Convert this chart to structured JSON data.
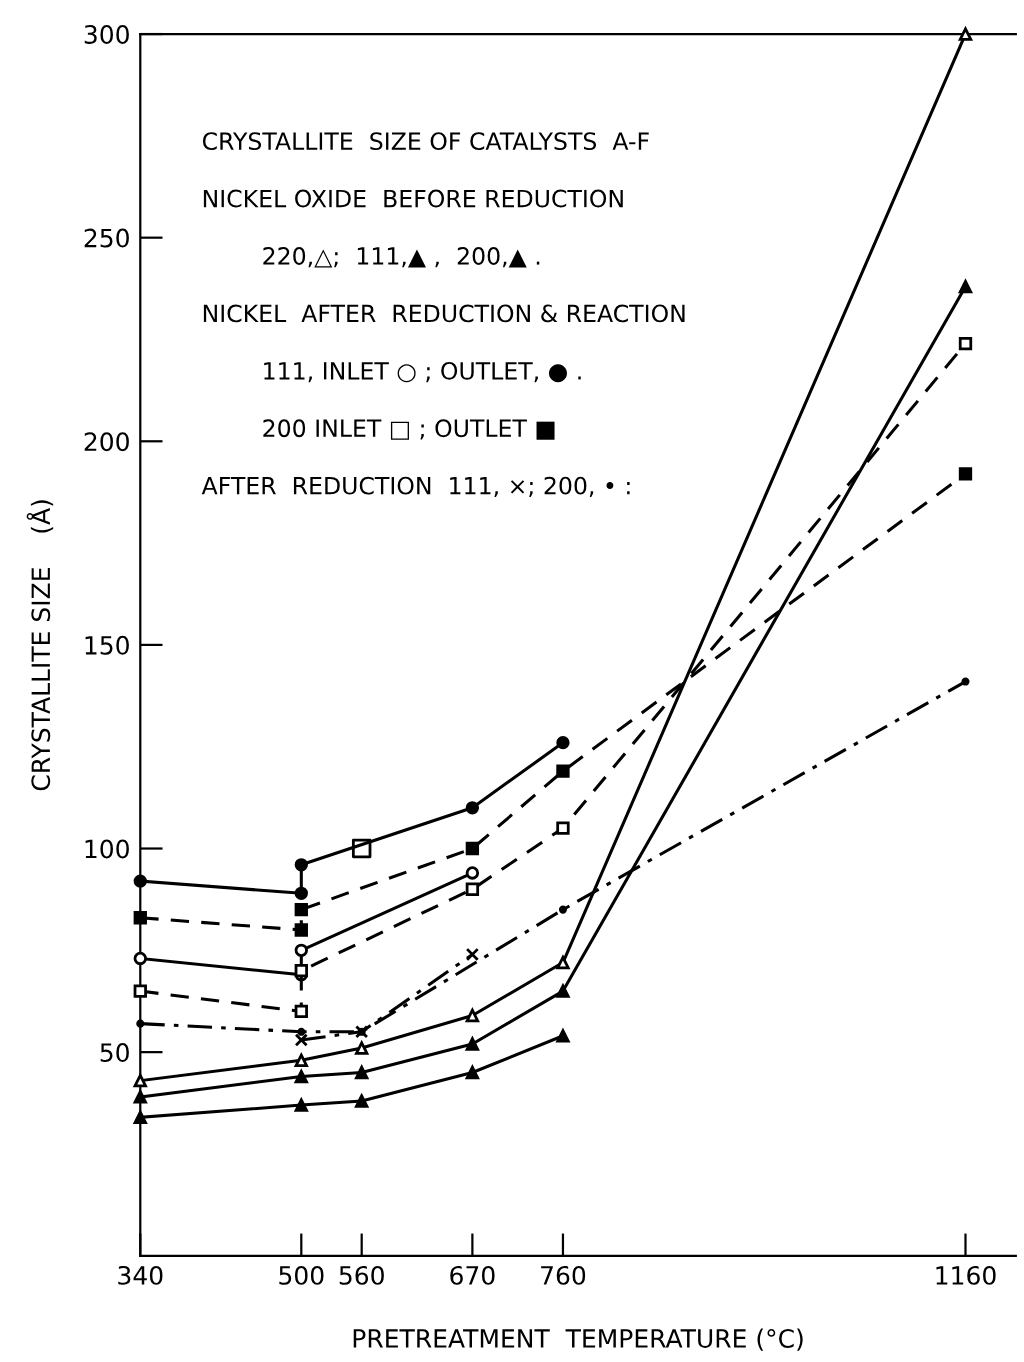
{
  "chart_data": {
    "type": "line",
    "xlabel": "PRETREATMENT  TEMPERATURE (°C)",
    "ylabel": "CRYSTALLITE SIZE    (Å)",
    "xlim": [
      340,
      1210
    ],
    "ylim": [
      0,
      300
    ],
    "xticks": [
      340,
      500,
      560,
      670,
      760,
      1160
    ],
    "yticks": [
      50,
      100,
      150,
      200,
      250,
      300
    ],
    "grid": false,
    "legend": false,
    "annotations": [
      "CRYSTALLITE  SIZE OF CATALYSTS  A-F",
      "NICKEL OXIDE  BEFORE REDUCTION",
      "        220,△;  111,▲ ,  200,▲ .",
      "NICKEL  AFTER  REDUCTION & REACTION",
      "        111, INLET ○ ; OUTLET, ● .",
      "        200 INLET □ ; OUTLET ■",
      "AFTER  REDUCTION  111, ×; 200, • :"
    ],
    "series": [
      {
        "color": "#000000",
        "marker": "circle",
        "line_style": "solid",
        "x": [
          340,
          500,
          500,
          670,
          760
        ],
        "values": [
          92,
          89,
          96,
          110,
          126
        ]
      },
      {
        "color": "#000000",
        "marker": "square",
        "line_style": "dashed",
        "x": [
          340,
          500,
          500,
          670,
          760,
          1160
        ],
        "values": [
          83,
          80,
          85,
          100,
          119,
          192
        ]
      },
      {
        "color": "#000000",
        "marker": "circle-open",
        "line_style": "solid",
        "x": [
          340,
          500,
          500,
          670
        ],
        "values": [
          73,
          69,
          75,
          94
        ]
      },
      {
        "color": "#000000",
        "marker": "square-open",
        "line_style": "dashed",
        "x": [
          340,
          500,
          500,
          670,
          760,
          1160
        ],
        "values": [
          65,
          60,
          70,
          90,
          105,
          224
        ]
      },
      {
        "color": "#000000",
        "type": "scatter",
        "marker": "square-open",
        "x": [
          560
        ],
        "values": [
          100
        ]
      },
      {
        "color": "#000000",
        "marker": "triangle-open",
        "line_style": "solid",
        "x": [
          340,
          500,
          560,
          670,
          760,
          1160
        ],
        "values": [
          43,
          48,
          51,
          59,
          72,
          300
        ]
      },
      {
        "color": "#000000",
        "marker": "triangle",
        "line_style": "solid",
        "x": [
          340,
          500,
          560,
          670,
          760,
          1160
        ],
        "values": [
          39,
          44,
          45,
          52,
          65,
          238
        ]
      },
      {
        "color": "#000000",
        "marker": "triangle",
        "line_style": "solid",
        "x": [
          340,
          500,
          560,
          670,
          760
        ],
        "values": [
          34,
          37,
          38,
          45,
          54
        ]
      },
      {
        "color": "#000000",
        "marker": "cross",
        "line_style": "dashdot",
        "x": [
          500,
          560,
          670
        ],
        "values": [
          53,
          55,
          74
        ]
      },
      {
        "color": "#000000",
        "marker": "point",
        "line_style": "dashdot",
        "x": [
          340,
          500,
          560,
          760,
          1160
        ],
        "values": [
          57,
          55,
          55,
          85,
          141
        ]
      }
    ]
  }
}
